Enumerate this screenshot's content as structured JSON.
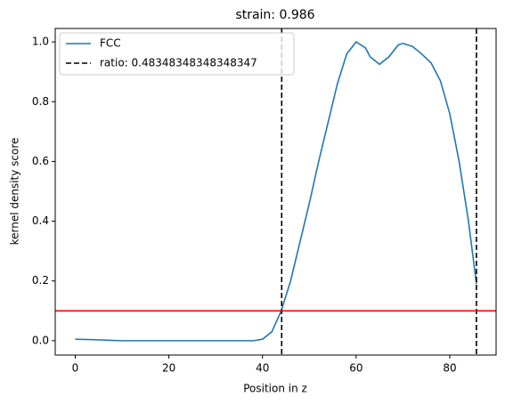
{
  "chart_data": {
    "type": "line",
    "title": "strain: 0.986",
    "xlabel": "Position in z",
    "ylabel": "kernel density score",
    "xlim": [
      -4.28,
      89.9
    ],
    "ylim": [
      -0.048,
      1.045
    ],
    "xticks": [
      0,
      20,
      40,
      60,
      80
    ],
    "yticks": [
      {
        "value": 0,
        "label": "0.0"
      },
      0.2,
      0.4,
      0.6,
      0.8,
      {
        "value": 1,
        "label": "1.0"
      }
    ],
    "legend": "upper left",
    "series": [
      {
        "name": "FCC",
        "color": "#1f77b4",
        "x": [
          0,
          5,
          8,
          10,
          20,
          30,
          38,
          40,
          42,
          44,
          46,
          48,
          50,
          52,
          54,
          56,
          58,
          60,
          62,
          63,
          65,
          67,
          69,
          70,
          72,
          74,
          76,
          78,
          80,
          82,
          84,
          85.7
        ],
        "values": [
          0.005,
          0.003,
          0.001,
          0,
          0,
          0,
          0,
          0.005,
          0.03,
          0.1,
          0.2,
          0.33,
          0.46,
          0.6,
          0.73,
          0.86,
          0.96,
          1.0,
          0.98,
          0.95,
          0.925,
          0.95,
          0.99,
          0.995,
          0.985,
          0.96,
          0.93,
          0.87,
          0.76,
          0.6,
          0.4,
          0.19
        ]
      },
      {
        "name": "ratio: 0.48348348348348347",
        "color": "#000000",
        "style": "dashed",
        "vlines": [
          44.1,
          85.7
        ]
      }
    ],
    "hlines": [
      {
        "y": 0.1,
        "color": "#ff0000"
      }
    ]
  }
}
